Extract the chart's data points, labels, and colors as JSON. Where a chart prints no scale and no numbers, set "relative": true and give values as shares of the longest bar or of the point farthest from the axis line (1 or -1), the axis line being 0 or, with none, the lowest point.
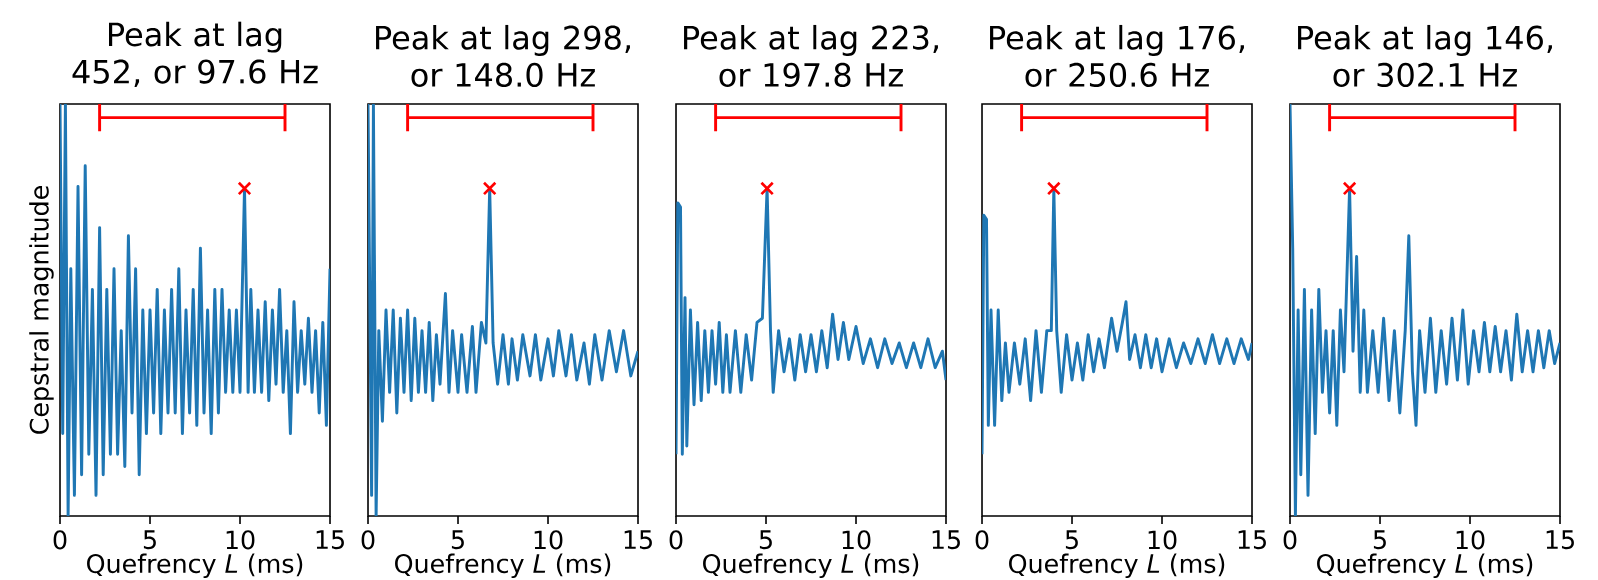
{
  "chart_data": [
    {
      "type": "line",
      "title": "Peak at lag 452, or 97.6 Hz",
      "xlabel": "Quefrency *L* (ms)",
      "ylabel": "Cepstral magnitude",
      "relative": true,
      "xlim": [
        0,
        15
      ],
      "xticks": [
        0,
        5,
        10,
        15
      ],
      "series": [
        {
          "color": "#1f77b4",
          "x": [
            0.0,
            0.15,
            0.3,
            0.45,
            0.6,
            0.8,
            1.0,
            1.2,
            1.4,
            1.6,
            1.8,
            2.0,
            2.2,
            2.4,
            2.6,
            2.8,
            3.0,
            3.2,
            3.4,
            3.6,
            3.8,
            4.0,
            4.2,
            4.4,
            4.6,
            4.8,
            5.0,
            5.2,
            5.4,
            5.6,
            5.8,
            6.0,
            6.2,
            6.4,
            6.6,
            6.8,
            7.0,
            7.2,
            7.4,
            7.6,
            7.8,
            8.0,
            8.2,
            8.4,
            8.6,
            8.8,
            9.0,
            9.2,
            9.4,
            9.6,
            9.8,
            10.0,
            10.25,
            10.45,
            10.6,
            10.8,
            11.0,
            11.2,
            11.4,
            11.6,
            11.8,
            12.0,
            12.2,
            12.4,
            12.6,
            12.8,
            13.0,
            13.2,
            13.4,
            13.6,
            13.8,
            14.0,
            14.2,
            14.4,
            14.6,
            14.8,
            15.0
          ],
          "values": [
            1.0,
            0.2,
            1.0,
            0.0,
            0.6,
            0.05,
            0.8,
            0.1,
            0.85,
            0.15,
            0.55,
            0.05,
            0.7,
            0.1,
            0.55,
            0.15,
            0.6,
            0.15,
            0.45,
            0.12,
            0.68,
            0.25,
            0.6,
            0.1,
            0.5,
            0.2,
            0.5,
            0.25,
            0.55,
            0.2,
            0.5,
            0.25,
            0.55,
            0.25,
            0.6,
            0.2,
            0.5,
            0.25,
            0.55,
            0.22,
            0.65,
            0.25,
            0.5,
            0.2,
            0.55,
            0.25,
            0.55,
            0.3,
            0.5,
            0.3,
            0.5,
            0.3,
            0.795,
            0.3,
            0.55,
            0.3,
            0.5,
            0.3,
            0.52,
            0.28,
            0.5,
            0.32,
            0.55,
            0.3,
            0.45,
            0.2,
            0.52,
            0.3,
            0.45,
            0.32,
            0.48,
            0.3,
            0.45,
            0.25,
            0.47,
            0.22,
            0.6
          ]
        },
        {
          "type": "scatter",
          "marker": "cross",
          "color": "#ff0000",
          "x": [
            10.25
          ],
          "values": [
            0.795
          ]
        },
        {
          "type": "line",
          "color": "#ff0000",
          "x": [
            2.2,
            2.2,
            2.2,
            12.5,
            12.5,
            12.5
          ],
          "values": [
            0.934,
            1.0,
            0.967,
            0.967,
            1.0,
            0.934
          ]
        }
      ]
    },
    {
      "type": "line",
      "title": "Peak at lag 298, or 148.0 Hz",
      "xlabel": "Quefrency *L* (ms)",
      "relative": true,
      "xlim": [
        0,
        15
      ],
      "xticks": [
        0,
        5,
        10,
        15
      ],
      "series": [
        {
          "color": "#1f77b4",
          "x": [
            0.0,
            0.2,
            0.3,
            0.45,
            0.6,
            0.8,
            1.0,
            1.2,
            1.4,
            1.6,
            1.8,
            2.0,
            2.2,
            2.4,
            2.6,
            2.8,
            3.0,
            3.2,
            3.4,
            3.6,
            3.8,
            4.0,
            4.3,
            4.5,
            4.7,
            5.0,
            5.2,
            5.5,
            5.8,
            6.0,
            6.3,
            6.55,
            6.76,
            6.95,
            7.2,
            7.5,
            7.8,
            8.0,
            8.3,
            8.6,
            9.0,
            9.3,
            9.6,
            10.0,
            10.3,
            10.6,
            11.0,
            11.3,
            11.6,
            12.0,
            12.3,
            12.6,
            13.0,
            13.4,
            13.8,
            14.2,
            14.6,
            15.0
          ],
          "values": [
            1.0,
            0.05,
            1.0,
            0.0,
            0.45,
            0.23,
            0.5,
            0.3,
            0.5,
            0.25,
            0.48,
            0.3,
            0.5,
            0.28,
            0.48,
            0.3,
            0.45,
            0.3,
            0.47,
            0.28,
            0.44,
            0.32,
            0.54,
            0.3,
            0.45,
            0.3,
            0.44,
            0.3,
            0.46,
            0.3,
            0.47,
            0.42,
            0.795,
            0.42,
            0.32,
            0.44,
            0.32,
            0.43,
            0.33,
            0.44,
            0.34,
            0.44,
            0.33,
            0.43,
            0.34,
            0.45,
            0.34,
            0.44,
            0.33,
            0.42,
            0.32,
            0.44,
            0.33,
            0.45,
            0.35,
            0.45,
            0.34,
            0.4
          ]
        },
        {
          "type": "scatter",
          "marker": "cross",
          "color": "#ff0000",
          "x": [
            6.76
          ],
          "values": [
            0.795
          ]
        },
        {
          "type": "line",
          "color": "#ff0000",
          "x": [
            2.2,
            2.2,
            2.2,
            12.5,
            12.5,
            12.5
          ],
          "values": [
            0.934,
            1.0,
            0.967,
            0.967,
            1.0,
            0.934
          ]
        }
      ]
    },
    {
      "type": "line",
      "title": "Peak at lag 223, or 197.8 Hz",
      "xlabel": "Quefrency *L* (ms)",
      "relative": true,
      "xlim": [
        0,
        15
      ],
      "xticks": [
        0,
        5,
        10,
        15
      ],
      "series": [
        {
          "color": "#1f77b4",
          "x": [
            0.0,
            0.1,
            0.25,
            0.35,
            0.5,
            0.6,
            0.8,
            1.0,
            1.2,
            1.4,
            1.6,
            1.8,
            2.0,
            2.2,
            2.4,
            2.6,
            2.8,
            3.0,
            3.3,
            3.6,
            3.9,
            4.2,
            4.5,
            4.8,
            5.06,
            5.25,
            5.4,
            5.7,
            6.0,
            6.3,
            6.6,
            6.9,
            7.2,
            7.5,
            7.8,
            8.1,
            8.4,
            8.7,
            9.0,
            9.3,
            9.6,
            10.0,
            10.4,
            10.8,
            11.2,
            11.6,
            12.0,
            12.4,
            12.8,
            13.2,
            13.6,
            14.0,
            14.4,
            14.8,
            15.0
          ],
          "values": [
            0.15,
            0.76,
            0.75,
            0.15,
            0.53,
            0.17,
            0.5,
            0.27,
            0.47,
            0.28,
            0.45,
            0.3,
            0.45,
            0.32,
            0.47,
            0.3,
            0.44,
            0.3,
            0.45,
            0.3,
            0.44,
            0.33,
            0.47,
            0.48,
            0.795,
            0.45,
            0.3,
            0.45,
            0.35,
            0.43,
            0.33,
            0.44,
            0.35,
            0.44,
            0.35,
            0.45,
            0.36,
            0.49,
            0.38,
            0.47,
            0.38,
            0.46,
            0.37,
            0.43,
            0.36,
            0.43,
            0.37,
            0.42,
            0.36,
            0.42,
            0.36,
            0.43,
            0.36,
            0.4,
            0.33
          ]
        },
        {
          "type": "scatter",
          "marker": "cross",
          "color": "#ff0000",
          "x": [
            5.06
          ],
          "values": [
            0.795
          ]
        },
        {
          "type": "line",
          "color": "#ff0000",
          "x": [
            2.2,
            2.2,
            2.2,
            12.5,
            12.5,
            12.5
          ],
          "values": [
            0.934,
            1.0,
            0.967,
            0.967,
            1.0,
            0.934
          ]
        }
      ]
    },
    {
      "type": "line",
      "title": "Peak at lag 176, or 250.6 Hz",
      "xlabel": "Quefrency *L* (ms)",
      "relative": true,
      "xlim": [
        0,
        15
      ],
      "xticks": [
        0,
        5,
        10,
        15
      ],
      "series": [
        {
          "color": "#1f77b4",
          "x": [
            0.0,
            0.1,
            0.25,
            0.35,
            0.5,
            0.7,
            0.9,
            1.1,
            1.3,
            1.5,
            1.8,
            2.1,
            2.4,
            2.7,
            3.0,
            3.3,
            3.6,
            3.85,
            3.99,
            4.15,
            4.4,
            4.7,
            5.0,
            5.3,
            5.6,
            5.9,
            6.2,
            6.5,
            6.8,
            7.2,
            7.5,
            7.8,
            8.0,
            8.2,
            8.5,
            8.8,
            9.1,
            9.4,
            9.7,
            10.0,
            10.4,
            10.8,
            11.2,
            11.6,
            12.0,
            12.4,
            12.8,
            13.2,
            13.6,
            14.0,
            14.4,
            14.8,
            15.0
          ],
          "values": [
            0.15,
            0.73,
            0.72,
            0.22,
            0.5,
            0.22,
            0.5,
            0.28,
            0.42,
            0.3,
            0.42,
            0.32,
            0.43,
            0.28,
            0.45,
            0.3,
            0.45,
            0.45,
            0.795,
            0.45,
            0.3,
            0.44,
            0.33,
            0.42,
            0.33,
            0.44,
            0.35,
            0.43,
            0.36,
            0.48,
            0.4,
            0.47,
            0.52,
            0.38,
            0.44,
            0.36,
            0.44,
            0.36,
            0.43,
            0.35,
            0.43,
            0.36,
            0.42,
            0.37,
            0.43,
            0.37,
            0.44,
            0.37,
            0.43,
            0.37,
            0.43,
            0.38,
            0.42
          ]
        },
        {
          "type": "scatter",
          "marker": "cross",
          "color": "#ff0000",
          "x": [
            3.99
          ],
          "values": [
            0.795
          ]
        },
        {
          "type": "line",
          "color": "#ff0000",
          "x": [
            2.2,
            2.2,
            2.2,
            12.5,
            12.5,
            12.5
          ],
          "values": [
            0.934,
            1.0,
            0.967,
            0.967,
            1.0,
            0.934
          ]
        }
      ]
    },
    {
      "type": "line",
      "title": "Peak at lag 146, or 302.1 Hz",
      "xlabel": "Quefrency *L* (ms)",
      "relative": true,
      "xlim": [
        0,
        15
      ],
      "xticks": [
        0,
        5,
        10,
        15
      ],
      "series": [
        {
          "color": "#1f77b4",
          "x": [
            0.0,
            0.15,
            0.3,
            0.45,
            0.6,
            0.8,
            1.0,
            1.2,
            1.4,
            1.6,
            1.8,
            2.0,
            2.2,
            2.4,
            2.6,
            2.8,
            3.0,
            3.31,
            3.5,
            3.7,
            3.9,
            4.1,
            4.3,
            4.6,
            4.9,
            5.2,
            5.5,
            5.8,
            6.1,
            6.4,
            6.6,
            6.8,
            7.0,
            7.2,
            7.5,
            7.8,
            8.1,
            8.4,
            8.7,
            9.0,
            9.3,
            9.6,
            9.9,
            10.2,
            10.5,
            10.8,
            11.1,
            11.4,
            11.7,
            12.0,
            12.3,
            12.6,
            12.9,
            13.2,
            13.5,
            13.8,
            14.1,
            14.4,
            14.7,
            15.0
          ],
          "values": [
            1.0,
            0.65,
            0.0,
            0.5,
            0.1,
            0.55,
            0.05,
            0.5,
            0.2,
            0.55,
            0.3,
            0.45,
            0.25,
            0.45,
            0.22,
            0.5,
            0.35,
            0.795,
            0.4,
            0.63,
            0.3,
            0.5,
            0.3,
            0.45,
            0.3,
            0.48,
            0.28,
            0.45,
            0.25,
            0.45,
            0.68,
            0.35,
            0.22,
            0.45,
            0.3,
            0.48,
            0.3,
            0.45,
            0.32,
            0.48,
            0.33,
            0.5,
            0.32,
            0.45,
            0.35,
            0.47,
            0.35,
            0.46,
            0.35,
            0.45,
            0.33,
            0.49,
            0.35,
            0.45,
            0.35,
            0.45,
            0.36,
            0.45,
            0.37,
            0.42
          ]
        },
        {
          "type": "scatter",
          "marker": "cross",
          "color": "#ff0000",
          "x": [
            3.31
          ],
          "values": [
            0.795
          ]
        },
        {
          "type": "line",
          "color": "#ff0000",
          "x": [
            2.2,
            2.2,
            2.2,
            12.5,
            12.5,
            12.5
          ],
          "values": [
            0.934,
            1.0,
            0.967,
            0.967,
            1.0,
            0.934
          ]
        }
      ]
    }
  ]
}
